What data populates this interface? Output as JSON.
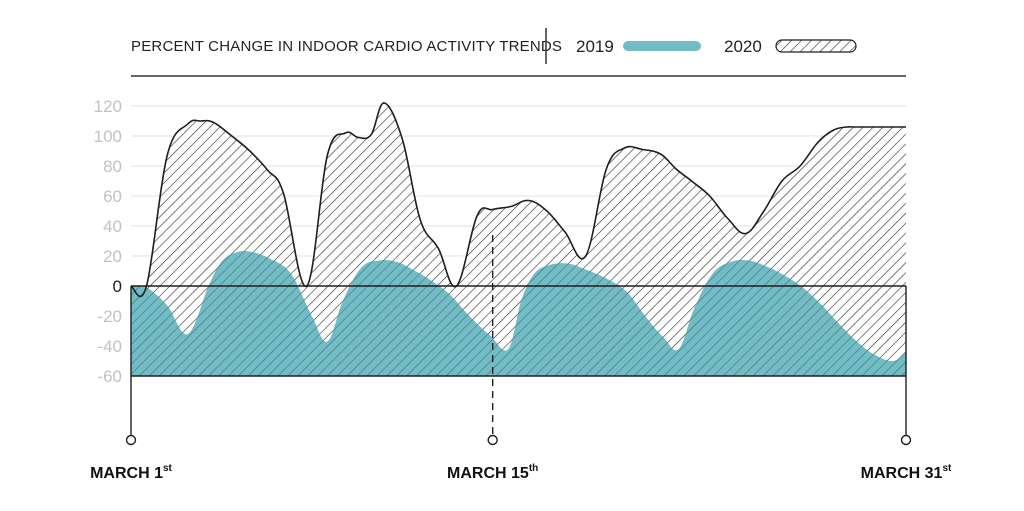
{
  "chart_data": {
    "type": "area",
    "title": "PERCENT CHANGE IN INDOOR CARDIO ACTIVITY TRENDS",
    "ylim": [
      -60,
      120
    ],
    "yticks": [
      120,
      100,
      80,
      60,
      40,
      20,
      0,
      -20,
      -40,
      -60
    ],
    "grid": true,
    "legend_position": "top-right",
    "x_markers": [
      {
        "day": 1,
        "label": "MARCH 1",
        "sup": "st"
      },
      {
        "day": 15,
        "label": "MARCH 15",
        "sup": "th"
      },
      {
        "day": 31,
        "label": "MARCH 31",
        "sup": "st"
      }
    ],
    "x_range": [
      1,
      31
    ],
    "series": [
      {
        "name": "2019",
        "color": "#72bcc6",
        "style": "solid",
        "x": [
          1,
          1.6,
          2.4,
          3.2,
          4.0,
          4.5,
          5.0,
          5.6,
          6.4,
          7.2,
          8.0,
          8.6,
          9.2,
          9.9,
          10.6,
          11.3,
          11.9,
          12.5,
          13.3,
          14.1,
          14.9,
          15.6,
          16.1,
          16.6,
          17.2,
          17.9,
          18.6,
          19.4,
          20.2,
          20.9,
          21.6,
          22.2,
          22.8,
          23.5,
          24.2,
          24.9,
          25.6,
          26.3,
          27.0,
          27.7,
          28.4,
          29.1,
          29.8,
          30.5,
          31
        ],
        "y": [
          0,
          -1,
          -13,
          -32,
          0,
          16,
          22,
          23,
          18,
          8,
          -20,
          -37,
          -10,
          12,
          17,
          16,
          11,
          5,
          -5,
          -20,
          -33,
          -42,
          -10,
          8,
          14,
          15,
          11,
          5,
          -4,
          -20,
          -34,
          -42,
          -15,
          8,
          16,
          17,
          13,
          7,
          -1,
          -12,
          -25,
          -37,
          -46,
          -50,
          -44
        ]
      },
      {
        "name": "2020",
        "color": "#ffffff",
        "style": "hatched",
        "x": [
          1,
          1.6,
          2.4,
          3.2,
          3.7,
          4.2,
          4.9,
          5.6,
          6.3,
          6.9,
          7.8,
          8.6,
          9.3,
          9.8,
          10.3,
          10.8,
          11.5,
          12.2,
          12.9,
          13.6,
          14.4,
          15.0,
          15.7,
          16.4,
          17.1,
          17.8,
          18.6,
          19.4,
          20.1,
          20.8,
          21.5,
          22.1,
          22.7,
          23.4,
          24.1,
          24.8,
          25.5,
          26.2,
          26.9,
          27.6,
          28.2,
          28.7,
          29.0,
          29.5,
          30.2,
          31
        ],
        "y": [
          0,
          0,
          87,
          108,
          110,
          109,
          100,
          90,
          77,
          62,
          0,
          87,
          102,
          99,
          101,
          122,
          98,
          44,
          25,
          0,
          47,
          51,
          53,
          57,
          50,
          36,
          20,
          78,
          92,
          91,
          88,
          78,
          70,
          60,
          45,
          35,
          50,
          70,
          80,
          96,
          104,
          106,
          106,
          106,
          106,
          106
        ]
      }
    ]
  }
}
